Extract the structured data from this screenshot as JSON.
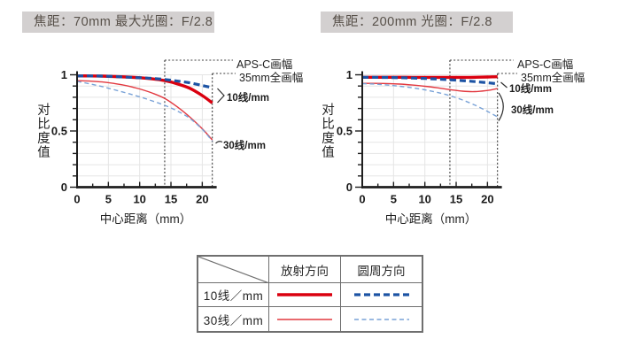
{
  "colors": {
    "headerBg": "#d3d0d0",
    "headerText": "#575049",
    "axis": "#1f1f1f",
    "grid": "#e5e5e5",
    "dotted": "#3c3c3c",
    "thickRed": "#da000f",
    "thinRed": "#e2383f",
    "thickBlue": "#1c53a4",
    "thinBlue": "#79a2d7",
    "tableBorder": "#6f6f6f"
  },
  "chart_data": [
    {
      "type": "line",
      "title": "焦距：70mm  最大光圈：F/2.8",
      "xlabel": "中心距离（mm）",
      "ylabel": "对比度值",
      "xlim": [
        0,
        21.9
      ],
      "ylim": [
        0,
        1
      ],
      "xticks": [
        0,
        5,
        10,
        15,
        20
      ],
      "yticks": [
        1,
        0.5,
        0
      ],
      "grid": {
        "x_step": 5,
        "y_step": 0.1
      },
      "x": [
        0,
        2,
        4,
        6,
        8,
        10,
        12,
        14,
        16,
        18,
        20,
        21.6
      ],
      "series": [
        {
          "name": "10线/mm 放射方向",
          "style": "thick-red-solid",
          "values": [
            0.99,
            0.99,
            0.988,
            0.984,
            0.98,
            0.974,
            0.964,
            0.948,
            0.92,
            0.88,
            0.815,
            0.75
          ]
        },
        {
          "name": "10线/mm 圆周方向",
          "style": "thick-blue-dashed",
          "values": [
            0.99,
            0.99,
            0.988,
            0.984,
            0.979,
            0.974,
            0.968,
            0.958,
            0.944,
            0.928,
            0.905,
            0.885
          ]
        },
        {
          "name": "30线/mm 放射方向",
          "style": "thin-red-solid",
          "values": [
            0.948,
            0.944,
            0.936,
            0.922,
            0.902,
            0.874,
            0.838,
            0.79,
            0.715,
            0.625,
            0.52,
            0.42
          ]
        },
        {
          "name": "30线/mm 圆周方向",
          "style": "thin-blue-dashed",
          "values": [
            0.942,
            0.92,
            0.895,
            0.866,
            0.836,
            0.804,
            0.768,
            0.728,
            0.678,
            0.613,
            0.515,
            0.41
          ]
        }
      ],
      "annotations": [
        {
          "label": "APS-C画幅",
          "x": 14
        },
        {
          "label": "35mm全画幅",
          "x": 21.6
        }
      ],
      "line_labels": [
        {
          "text": "10线/mm"
        },
        {
          "text": "30线/mm"
        }
      ]
    },
    {
      "type": "line",
      "title": "焦距：200mm  光圈：F/2.8",
      "xlabel": "中心距离（mm）",
      "ylabel": "对比度值",
      "xlim": [
        0,
        21.9
      ],
      "ylim": [
        0,
        1
      ],
      "xticks": [
        0,
        5,
        10,
        15,
        20
      ],
      "yticks": [
        1,
        0.5,
        0
      ],
      "grid": {
        "x_step": 5,
        "y_step": 0.1
      },
      "x": [
        0,
        2,
        4,
        6,
        8,
        10,
        12,
        14,
        16,
        18,
        20,
        21.6
      ],
      "series": [
        {
          "name": "10线/mm 放射方向",
          "style": "thick-red-solid",
          "values": [
            0.978,
            0.978,
            0.978,
            0.978,
            0.977,
            0.977,
            0.977,
            0.977,
            0.977,
            0.978,
            0.98,
            0.983
          ]
        },
        {
          "name": "10线/mm 圆周方向",
          "style": "thick-blue-dashed",
          "values": [
            0.978,
            0.977,
            0.976,
            0.974,
            0.971,
            0.967,
            0.962,
            0.956,
            0.948,
            0.939,
            0.929,
            0.92
          ]
        },
        {
          "name": "30线/mm 放射方向",
          "style": "thin-red-solid",
          "values": [
            0.924,
            0.924,
            0.922,
            0.917,
            0.909,
            0.898,
            0.884,
            0.868,
            0.854,
            0.85,
            0.861,
            0.878
          ]
        },
        {
          "name": "30线/mm 圆周方向",
          "style": "thin-blue-dashed",
          "values": [
            0.921,
            0.917,
            0.909,
            0.898,
            0.884,
            0.866,
            0.843,
            0.814,
            0.776,
            0.73,
            0.674,
            0.625
          ]
        }
      ],
      "annotations": [
        {
          "label": "APS-C画幅",
          "x": 14
        },
        {
          "label": "35mm全画幅",
          "x": 21.6
        }
      ],
      "line_labels": [
        {
          "text": "10线/mm"
        },
        {
          "text": "30线/mm"
        }
      ]
    }
  ],
  "legend_table": {
    "col_headers": [
      "放射方向",
      "圆周方向"
    ],
    "rows": [
      {
        "label": "10线／mm",
        "radial_style": "thick-red-solid",
        "circumferential_style": "thick-blue-dashed"
      },
      {
        "label": "30线／mm",
        "radial_style": "thin-red-solid",
        "circumferential_style": "thin-blue-dashed"
      }
    ]
  }
}
